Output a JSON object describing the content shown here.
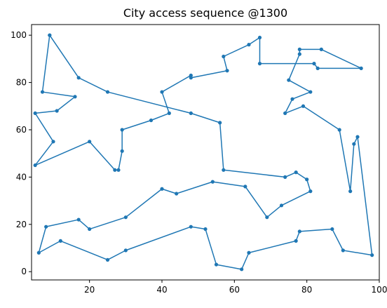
{
  "chart_data": {
    "type": "line",
    "title": "City access sequence @1300",
    "xlabel": "",
    "ylabel": "",
    "xlim": [
      4,
      100
    ],
    "ylim": [
      -3.5,
      104.5
    ],
    "xticks": [
      20,
      40,
      60,
      80,
      100
    ],
    "yticks": [
      0,
      20,
      40,
      60,
      80,
      100
    ],
    "grid": false,
    "legend": "none",
    "colors": {
      "line": "#1f77b4",
      "axis": "#000000"
    },
    "series": [
      {
        "points": [
          [
            9,
            100
          ],
          [
            17,
            82
          ],
          [
            25,
            76
          ],
          [
            48,
            67
          ],
          [
            56,
            63
          ],
          [
            57,
            43
          ],
          [
            74,
            40
          ],
          [
            77,
            42
          ],
          [
            80,
            39
          ],
          [
            81,
            34
          ],
          [
            73,
            28
          ],
          [
            69,
            23
          ],
          [
            63,
            36
          ],
          [
            54,
            38
          ],
          [
            44,
            33
          ],
          [
            40,
            35
          ],
          [
            30,
            23
          ],
          [
            20,
            18
          ],
          [
            17,
            22
          ],
          [
            8,
            19
          ],
          [
            6,
            8
          ],
          [
            12,
            13
          ],
          [
            25,
            5
          ],
          [
            30,
            9
          ],
          [
            48,
            19
          ],
          [
            52,
            18
          ],
          [
            55,
            3
          ],
          [
            62,
            1
          ],
          [
            64,
            8
          ],
          [
            77,
            13
          ],
          [
            78,
            17
          ],
          [
            87,
            18
          ],
          [
            90,
            9
          ],
          [
            98,
            7
          ],
          [
            94,
            57
          ],
          [
            93,
            54
          ],
          [
            92,
            34
          ],
          [
            89,
            60
          ],
          [
            79,
            70
          ],
          [
            74,
            67
          ],
          [
            76,
            73
          ],
          [
            81,
            76
          ],
          [
            75,
            81
          ],
          [
            78,
            92
          ],
          [
            78,
            94
          ],
          [
            84,
            94
          ],
          [
            95,
            86
          ],
          [
            83,
            86
          ],
          [
            82,
            88
          ],
          [
            67,
            88
          ],
          [
            67,
            99
          ],
          [
            64,
            96
          ],
          [
            57,
            91
          ],
          [
            58,
            85
          ],
          [
            48,
            82
          ],
          [
            48,
            83
          ],
          [
            40,
            76
          ],
          [
            42,
            67
          ],
          [
            37,
            64
          ],
          [
            29,
            60
          ],
          [
            29,
            51
          ],
          [
            28,
            43
          ],
          [
            27,
            43
          ],
          [
            20,
            55
          ],
          [
            5,
            45
          ],
          [
            10,
            55
          ],
          [
            5,
            67
          ],
          [
            11,
            68
          ],
          [
            16,
            74
          ],
          [
            7,
            76
          ],
          [
            9,
            100
          ]
        ]
      }
    ]
  }
}
